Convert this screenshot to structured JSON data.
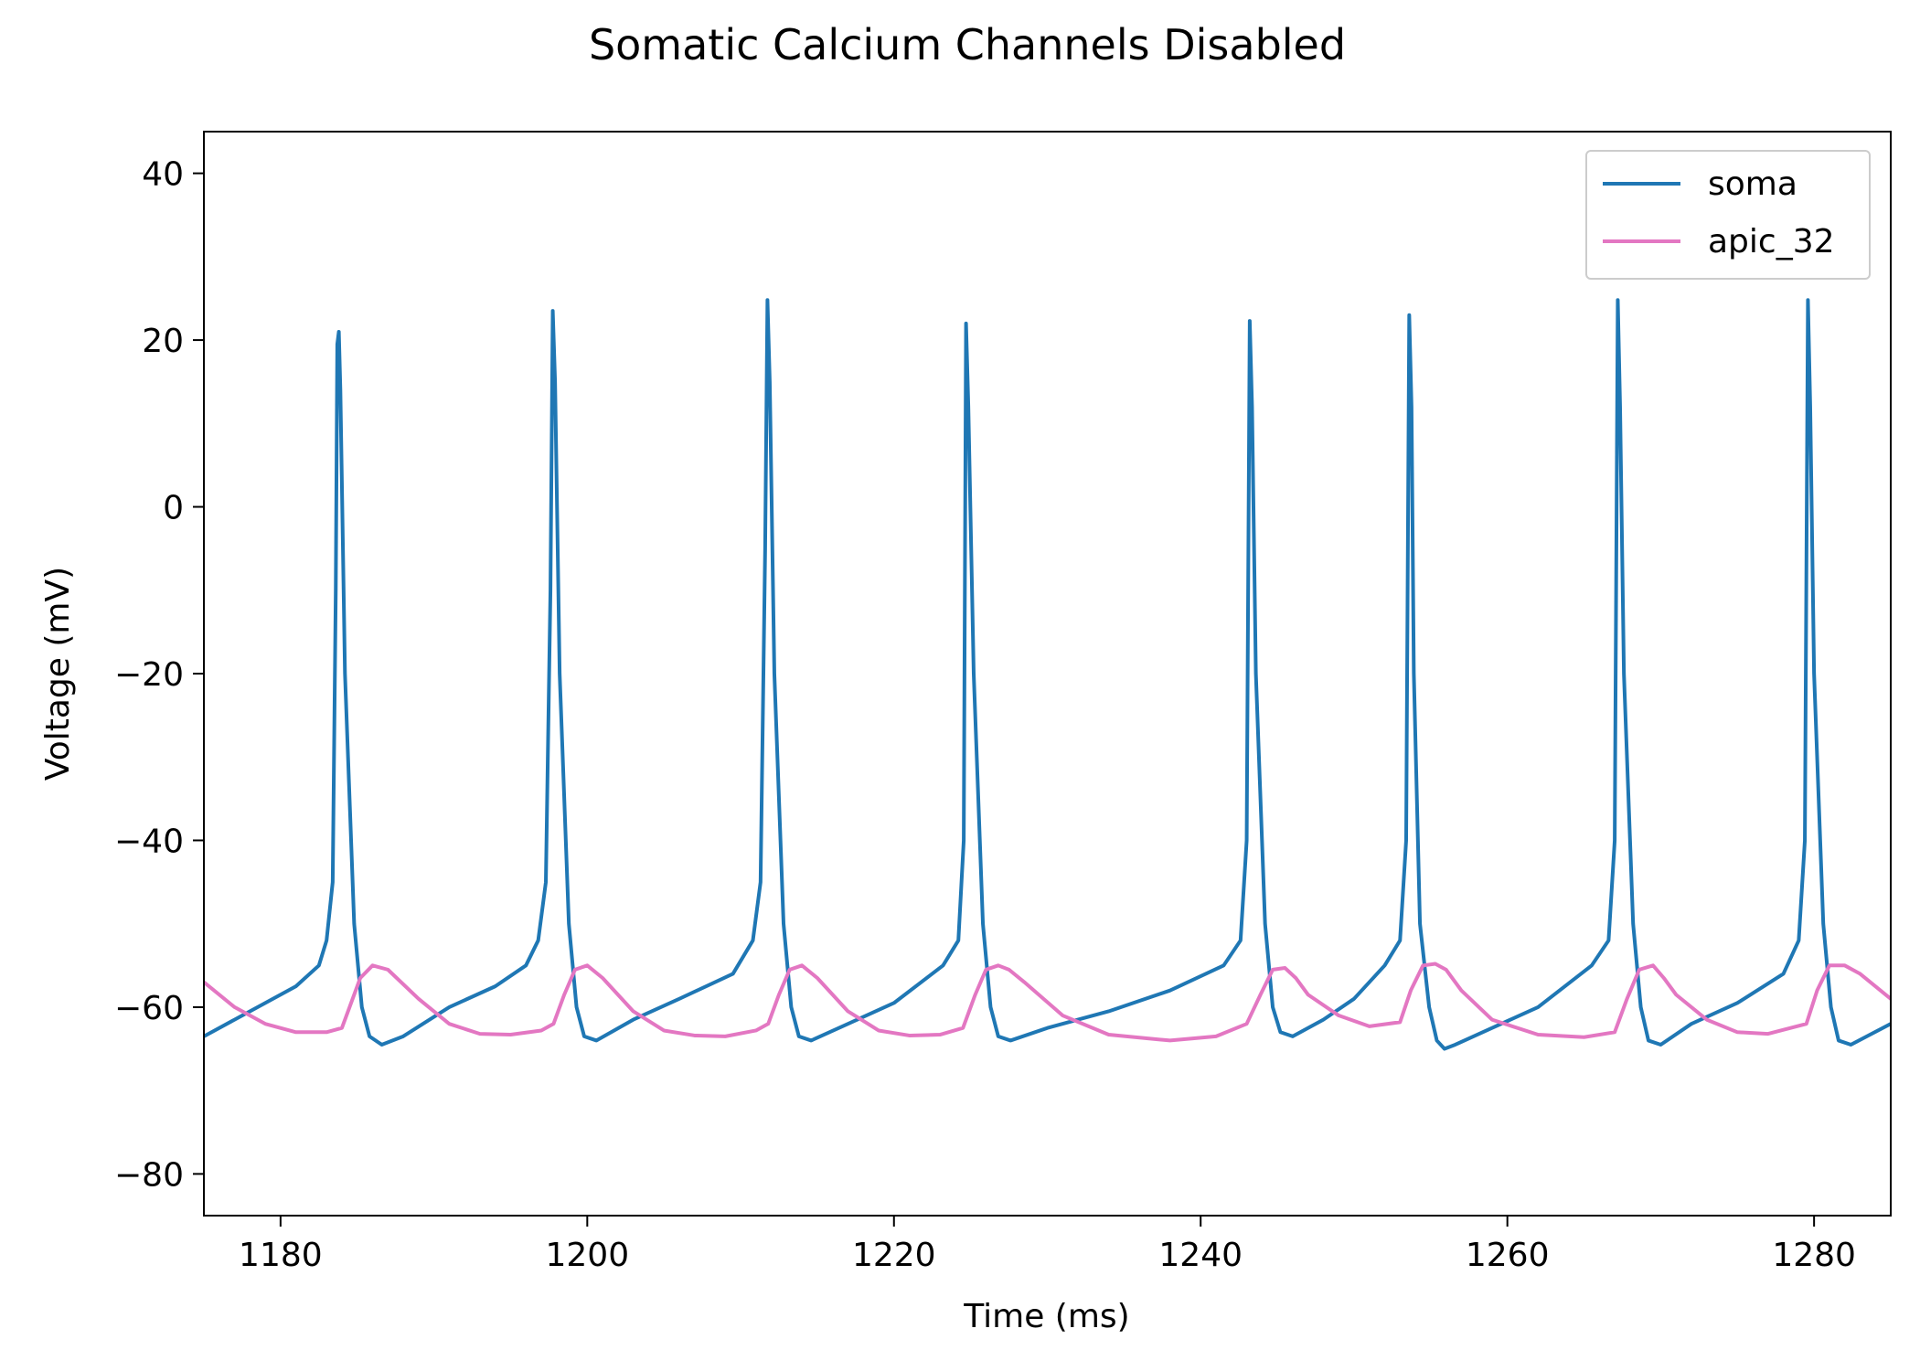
{
  "chart_data": {
    "type": "line",
    "title": "Somatic Calcium Channels Disabled",
    "xlabel": "Time (ms)",
    "ylabel": "Voltage (mV)",
    "xlim": [
      1175,
      1285
    ],
    "ylim": [
      -85,
      45
    ],
    "xticks": [
      "1180",
      "1200",
      "1220",
      "1240",
      "1260",
      "1280"
    ],
    "yticks": [
      "40",
      "20",
      "0",
      "−20",
      "−40",
      "−60",
      "−80"
    ],
    "grid": false,
    "legend_position": "top-right",
    "series": [
      {
        "name": "soma",
        "color": "#1f77b4",
        "x": [
          1175.0,
          1178.0,
          1181.0,
          1182.5,
          1183.0,
          1183.4,
          1183.6,
          1183.7,
          1183.8,
          1183.9,
          1184.2,
          1184.8,
          1185.3,
          1185.8,
          1186.6,
          1188.0,
          1191.0,
          1194.0,
          1196.0,
          1196.8,
          1197.3,
          1197.6,
          1197.75,
          1197.9,
          1198.2,
          1198.8,
          1199.3,
          1199.8,
          1200.6,
          1203.0,
          1206.0,
          1209.5,
          1210.8,
          1211.3,
          1211.6,
          1211.75,
          1211.9,
          1212.2,
          1212.8,
          1213.3,
          1213.8,
          1214.6,
          1217.0,
          1220.0,
          1223.2,
          1224.2,
          1224.55,
          1224.7,
          1224.85,
          1225.2,
          1225.8,
          1226.3,
          1226.8,
          1227.6,
          1230.0,
          1234.0,
          1238.0,
          1241.5,
          1242.6,
          1243.0,
          1243.2,
          1243.35,
          1243.6,
          1244.2,
          1244.7,
          1245.2,
          1246.0,
          1248.0,
          1250.0,
          1252.0,
          1253.0,
          1253.4,
          1253.6,
          1253.75,
          1253.9,
          1254.3,
          1254.9,
          1255.4,
          1255.9,
          1256.6,
          1259.0,
          1262.0,
          1265.5,
          1266.6,
          1267.0,
          1267.2,
          1267.35,
          1267.6,
          1268.2,
          1268.7,
          1269.2,
          1270.0,
          1272.0,
          1275.0,
          1278.0,
          1279.0,
          1279.4,
          1279.6,
          1279.75,
          1280.0,
          1280.6,
          1281.1,
          1281.6,
          1282.4,
          1285.0
        ],
        "values": [
          -63.5,
          -60.5,
          -57.5,
          -55.0,
          -52.0,
          -45.0,
          -10.0,
          19.5,
          21.0,
          14.0,
          -20.0,
          -50.0,
          -60.0,
          -63.5,
          -64.5,
          -63.5,
          -60.0,
          -57.5,
          -55.0,
          -52.0,
          -45.0,
          -10.0,
          23.5,
          15.0,
          -20.0,
          -50.0,
          -60.0,
          -63.5,
          -64.0,
          -61.5,
          -59.0,
          -56.0,
          -52.0,
          -45.0,
          -5.0,
          24.8,
          15.0,
          -20.0,
          -50.0,
          -60.0,
          -63.5,
          -64.0,
          -62.0,
          -59.5,
          -55.0,
          -52.0,
          -40.0,
          22.0,
          12.0,
          -20.0,
          -50.0,
          -60.0,
          -63.5,
          -64.0,
          -62.5,
          -60.5,
          -58.0,
          -55.0,
          -52.0,
          -40.0,
          22.3,
          12.0,
          -20.0,
          -50.0,
          -60.0,
          -63.0,
          -63.5,
          -61.5,
          -59.0,
          -55.0,
          -52.0,
          -40.0,
          23.0,
          12.0,
          -20.0,
          -50.0,
          -60.0,
          -64.0,
          -65.0,
          -64.5,
          -62.5,
          -60.0,
          -55.0,
          -52.0,
          -40.0,
          24.8,
          12.0,
          -20.0,
          -50.0,
          -60.0,
          -64.0,
          -64.5,
          -62.0,
          -59.5,
          -56.0,
          -52.0,
          -40.0,
          24.8,
          12.0,
          -20.0,
          -50.0,
          -60.0,
          -64.0,
          -64.5,
          -62.0
        ]
      },
      {
        "name": "apic_32",
        "color": "#e377c2",
        "x": [
          1175.0,
          1177.0,
          1179.0,
          1181.0,
          1183.0,
          1184.0,
          1184.5,
          1185.2,
          1186.0,
          1187.0,
          1189.0,
          1191.0,
          1193.0,
          1195.0,
          1197.0,
          1197.8,
          1198.5,
          1199.2,
          1200.0,
          1201.0,
          1203.0,
          1205.0,
          1207.0,
          1209.0,
          1211.0,
          1211.8,
          1212.5,
          1213.2,
          1214.0,
          1215.0,
          1217.0,
          1219.0,
          1221.0,
          1223.0,
          1224.5,
          1225.3,
          1226.0,
          1226.8,
          1227.5,
          1228.5,
          1231.0,
          1234.0,
          1238.0,
          1241.0,
          1243.0,
          1243.9,
          1244.7,
          1245.5,
          1246.2,
          1247.0,
          1249.0,
          1251.0,
          1253.0,
          1253.7,
          1254.5,
          1255.3,
          1256.0,
          1257.0,
          1259.0,
          1262.0,
          1265.0,
          1267.0,
          1267.8,
          1268.6,
          1269.5,
          1270.2,
          1271.0,
          1273.0,
          1275.0,
          1277.0,
          1279.5,
          1280.2,
          1281.0,
          1282.0,
          1283.0,
          1285.0
        ],
        "values": [
          -57.0,
          -60.0,
          -62.0,
          -63.0,
          -63.0,
          -62.5,
          -60.0,
          -56.5,
          -55.0,
          -55.5,
          -59.0,
          -62.0,
          -63.2,
          -63.3,
          -62.8,
          -62.0,
          -58.5,
          -55.5,
          -55.0,
          -56.5,
          -60.5,
          -62.8,
          -63.4,
          -63.5,
          -62.8,
          -62.0,
          -58.5,
          -55.5,
          -55.0,
          -56.5,
          -60.5,
          -62.8,
          -63.4,
          -63.3,
          -62.5,
          -58.5,
          -55.5,
          -55.0,
          -55.5,
          -57.0,
          -61.0,
          -63.3,
          -64.0,
          -63.5,
          -62.0,
          -58.5,
          -55.5,
          -55.3,
          -56.5,
          -58.5,
          -61.0,
          -62.3,
          -61.8,
          -58.0,
          -55.0,
          -54.8,
          -55.5,
          -58.0,
          -61.5,
          -63.3,
          -63.6,
          -63.0,
          -59.0,
          -55.5,
          -55.0,
          -56.5,
          -58.5,
          -61.5,
          -63.0,
          -63.2,
          -62.0,
          -58.0,
          -55.0,
          -55.0,
          -56.0,
          -59.0
        ]
      }
    ]
  }
}
